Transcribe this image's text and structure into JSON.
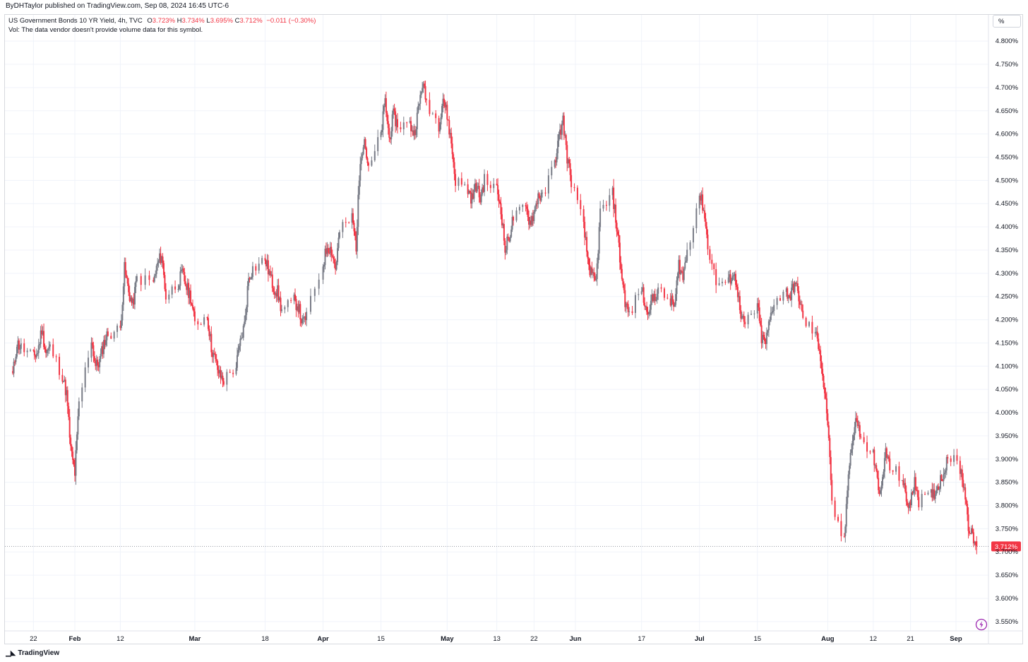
{
  "header": {
    "published": "ByDHTaylor published on TradingView.com, Sep 08, 2024 16:45 UTC-6"
  },
  "legend": {
    "symbol": "US Government Bonds 10 YR Yield, 4h, TVC",
    "open_label": "O",
    "open": "3.723%",
    "high_label": "H",
    "high": "3.734%",
    "low_label": "L",
    "low": "3.695%",
    "close_label": "C",
    "close": "3.712%",
    "change": "−0.011 (−0.30%)",
    "vol_note": "Vol: The data vendor doesn't provide volume data for this symbol."
  },
  "unit_button": {
    "label": "%"
  },
  "price_tag": "3.712%",
  "footer": {
    "brand": "TradingView"
  },
  "colors": {
    "up": "#787b86",
    "down": "#f23645",
    "grid": "#f0f3fa",
    "axis_text": "#131722"
  },
  "chart_data": {
    "type": "candlestick",
    "title": "US Government Bonds 10 YR Yield, 4h, TVC",
    "unit": "%",
    "ylim": [
      3.53,
      4.82
    ],
    "y_ticks": [
      "4.800%",
      "4.750%",
      "4.700%",
      "4.650%",
      "4.600%",
      "4.550%",
      "4.500%",
      "4.450%",
      "4.400%",
      "4.350%",
      "4.300%",
      "4.250%",
      "4.200%",
      "4.150%",
      "4.100%",
      "4.050%",
      "4.000%",
      "3.950%",
      "3.900%",
      "3.850%",
      "3.800%",
      "3.750%",
      "3.700%",
      "3.650%",
      "3.600%",
      "3.550%"
    ],
    "x_ticks": [
      {
        "label": "22",
        "date": "2024-01-22"
      },
      {
        "label": "Feb",
        "date": "2024-02-01"
      },
      {
        "label": "12",
        "date": "2024-02-12"
      },
      {
        "label": "Mar",
        "date": "2024-03-01"
      },
      {
        "label": "18",
        "date": "2024-03-18"
      },
      {
        "label": "Apr",
        "date": "2024-04-01"
      },
      {
        "label": "15",
        "date": "2024-04-15"
      },
      {
        "label": "May",
        "date": "2024-05-01"
      },
      {
        "label": "13",
        "date": "2024-05-13"
      },
      {
        "label": "22",
        "date": "2024-05-22"
      },
      {
        "label": "Jun",
        "date": "2024-06-01"
      },
      {
        "label": "17",
        "date": "2024-06-17"
      },
      {
        "label": "Jul",
        "date": "2024-07-01"
      },
      {
        "label": "15",
        "date": "2024-07-15"
      },
      {
        "label": "Aug",
        "date": "2024-08-01"
      },
      {
        "label": "12",
        "date": "2024-08-12"
      },
      {
        "label": "21",
        "date": "2024-08-21"
      },
      {
        "label": "Sep",
        "date": "2024-09-01"
      }
    ],
    "path": [
      [
        "2024-01-17",
        4.08
      ],
      [
        "2024-01-18",
        4.15
      ],
      [
        "2024-01-19",
        4.14
      ],
      [
        "2024-01-22",
        4.12
      ],
      [
        "2024-01-23",
        4.13
      ],
      [
        "2024-01-24",
        4.18
      ],
      [
        "2024-01-25",
        4.13
      ],
      [
        "2024-01-26",
        4.14
      ],
      [
        "2024-01-29",
        4.08
      ],
      [
        "2024-01-30",
        4.04
      ],
      [
        "2024-01-31",
        3.92
      ],
      [
        "2024-02-01",
        3.87
      ],
      [
        "2024-02-02",
        4.02
      ],
      [
        "2024-02-05",
        4.16
      ],
      [
        "2024-02-06",
        4.1
      ],
      [
        "2024-02-07",
        4.11
      ],
      [
        "2024-02-08",
        4.15
      ],
      [
        "2024-02-09",
        4.17
      ],
      [
        "2024-02-12",
        4.18
      ],
      [
        "2024-02-13",
        4.31
      ],
      [
        "2024-02-14",
        4.26
      ],
      [
        "2024-02-15",
        4.23
      ],
      [
        "2024-02-16",
        4.29
      ],
      [
        "2024-02-20",
        4.28
      ],
      [
        "2024-02-21",
        4.32
      ],
      [
        "2024-02-22",
        4.34
      ],
      [
        "2024-02-23",
        4.25
      ],
      [
        "2024-02-26",
        4.28
      ],
      [
        "2024-02-27",
        4.3
      ],
      [
        "2024-02-28",
        4.27
      ],
      [
        "2024-02-29",
        4.25
      ],
      [
        "2024-03-01",
        4.19
      ],
      [
        "2024-03-04",
        4.21
      ],
      [
        "2024-03-05",
        4.14
      ],
      [
        "2024-03-06",
        4.11
      ],
      [
        "2024-03-07",
        4.08
      ],
      [
        "2024-03-08",
        4.07
      ],
      [
        "2024-03-11",
        4.1
      ],
      [
        "2024-03-12",
        4.15
      ],
      [
        "2024-03-13",
        4.19
      ],
      [
        "2024-03-14",
        4.29
      ],
      [
        "2024-03-15",
        4.31
      ],
      [
        "2024-03-18",
        4.33
      ],
      [
        "2024-03-19",
        4.3
      ],
      [
        "2024-03-20",
        4.27
      ],
      [
        "2024-03-21",
        4.26
      ],
      [
        "2024-03-22",
        4.22
      ],
      [
        "2024-03-25",
        4.24
      ],
      [
        "2024-03-26",
        4.23
      ],
      [
        "2024-03-27",
        4.19
      ],
      [
        "2024-03-28",
        4.21
      ],
      [
        "2024-04-01",
        4.32
      ],
      [
        "2024-04-02",
        4.36
      ],
      [
        "2024-04-03",
        4.35
      ],
      [
        "2024-04-04",
        4.31
      ],
      [
        "2024-04-05",
        4.39
      ],
      [
        "2024-04-08",
        4.42
      ],
      [
        "2024-04-09",
        4.36
      ],
      [
        "2024-04-10",
        4.55
      ],
      [
        "2024-04-11",
        4.59
      ],
      [
        "2024-04-12",
        4.52
      ],
      [
        "2024-04-15",
        4.6
      ],
      [
        "2024-04-16",
        4.67
      ],
      [
        "2024-04-17",
        4.59
      ],
      [
        "2024-04-18",
        4.64
      ],
      [
        "2024-04-19",
        4.62
      ],
      [
        "2024-04-22",
        4.62
      ],
      [
        "2024-04-23",
        4.6
      ],
      [
        "2024-04-24",
        4.65
      ],
      [
        "2024-04-25",
        4.71
      ],
      [
        "2024-04-26",
        4.67
      ],
      [
        "2024-04-29",
        4.62
      ],
      [
        "2024-04-30",
        4.68
      ],
      [
        "2024-05-01",
        4.64
      ],
      [
        "2024-05-02",
        4.58
      ],
      [
        "2024-05-03",
        4.5
      ],
      [
        "2024-05-06",
        4.48
      ],
      [
        "2024-05-07",
        4.46
      ],
      [
        "2024-05-08",
        4.49
      ],
      [
        "2024-05-09",
        4.46
      ],
      [
        "2024-05-10",
        4.5
      ],
      [
        "2024-05-13",
        4.48
      ],
      [
        "2024-05-14",
        4.44
      ],
      [
        "2024-05-15",
        4.35
      ],
      [
        "2024-05-16",
        4.38
      ],
      [
        "2024-05-17",
        4.42
      ],
      [
        "2024-05-20",
        4.44
      ],
      [
        "2024-05-21",
        4.41
      ],
      [
        "2024-05-22",
        4.43
      ],
      [
        "2024-05-23",
        4.47
      ],
      [
        "2024-05-24",
        4.46
      ],
      [
        "2024-05-27",
        4.54
      ],
      [
        "2024-05-28",
        4.59
      ],
      [
        "2024-05-29",
        4.63
      ],
      [
        "2024-05-30",
        4.55
      ],
      [
        "2024-05-31",
        4.5
      ],
      [
        "2024-06-03",
        4.4
      ],
      [
        "2024-06-04",
        4.33
      ],
      [
        "2024-06-05",
        4.29
      ],
      [
        "2024-06-06",
        4.28
      ],
      [
        "2024-06-07",
        4.43
      ],
      [
        "2024-06-10",
        4.47
      ],
      [
        "2024-06-11",
        4.4
      ],
      [
        "2024-06-12",
        4.31
      ],
      [
        "2024-06-13",
        4.24
      ],
      [
        "2024-06-14",
        4.21
      ],
      [
        "2024-06-17",
        4.27
      ],
      [
        "2024-06-18",
        4.22
      ],
      [
        "2024-06-19",
        4.23
      ],
      [
        "2024-06-20",
        4.25
      ],
      [
        "2024-06-21",
        4.26
      ],
      [
        "2024-06-24",
        4.24
      ],
      [
        "2024-06-25",
        4.23
      ],
      [
        "2024-06-26",
        4.32
      ],
      [
        "2024-06-27",
        4.29
      ],
      [
        "2024-06-28",
        4.35
      ],
      [
        "2024-07-01",
        4.47
      ],
      [
        "2024-07-02",
        4.44
      ],
      [
        "2024-07-03",
        4.36
      ],
      [
        "2024-07-05",
        4.28
      ],
      [
        "2024-07-08",
        4.28
      ],
      [
        "2024-07-09",
        4.3
      ],
      [
        "2024-07-10",
        4.28
      ],
      [
        "2024-07-11",
        4.2
      ],
      [
        "2024-07-12",
        4.19
      ],
      [
        "2024-07-15",
        4.23
      ],
      [
        "2024-07-16",
        4.16
      ],
      [
        "2024-07-17",
        4.15
      ],
      [
        "2024-07-18",
        4.2
      ],
      [
        "2024-07-19",
        4.24
      ],
      [
        "2024-07-22",
        4.26
      ],
      [
        "2024-07-23",
        4.25
      ],
      [
        "2024-07-24",
        4.28
      ],
      [
        "2024-07-25",
        4.25
      ],
      [
        "2024-07-26",
        4.2
      ],
      [
        "2024-07-29",
        4.17
      ],
      [
        "2024-07-30",
        4.14
      ],
      [
        "2024-07-31",
        4.06
      ],
      [
        "2024-08-01",
        3.98
      ],
      [
        "2024-08-02",
        3.8
      ],
      [
        "2024-08-05",
        3.72
      ],
      [
        "2024-08-06",
        3.88
      ],
      [
        "2024-08-07",
        3.94
      ],
      [
        "2024-08-08",
        3.99
      ],
      [
        "2024-08-09",
        3.94
      ],
      [
        "2024-08-12",
        3.91
      ],
      [
        "2024-08-13",
        3.85
      ],
      [
        "2024-08-14",
        3.83
      ],
      [
        "2024-08-15",
        3.92
      ],
      [
        "2024-08-16",
        3.88
      ],
      [
        "2024-08-19",
        3.86
      ],
      [
        "2024-08-20",
        3.81
      ],
      [
        "2024-08-21",
        3.8
      ],
      [
        "2024-08-22",
        3.86
      ],
      [
        "2024-08-23",
        3.81
      ],
      [
        "2024-08-26",
        3.82
      ],
      [
        "2024-08-27",
        3.83
      ],
      [
        "2024-08-28",
        3.85
      ],
      [
        "2024-08-29",
        3.87
      ],
      [
        "2024-08-30",
        3.91
      ],
      [
        "2024-09-02",
        3.88
      ],
      [
        "2024-09-03",
        3.84
      ],
      [
        "2024-09-04",
        3.76
      ],
      [
        "2024-09-05",
        3.73
      ],
      [
        "2024-09-06",
        3.71
      ]
    ],
    "last": {
      "open": 3.723,
      "high": 3.734,
      "low": 3.695,
      "close": 3.712
    }
  }
}
